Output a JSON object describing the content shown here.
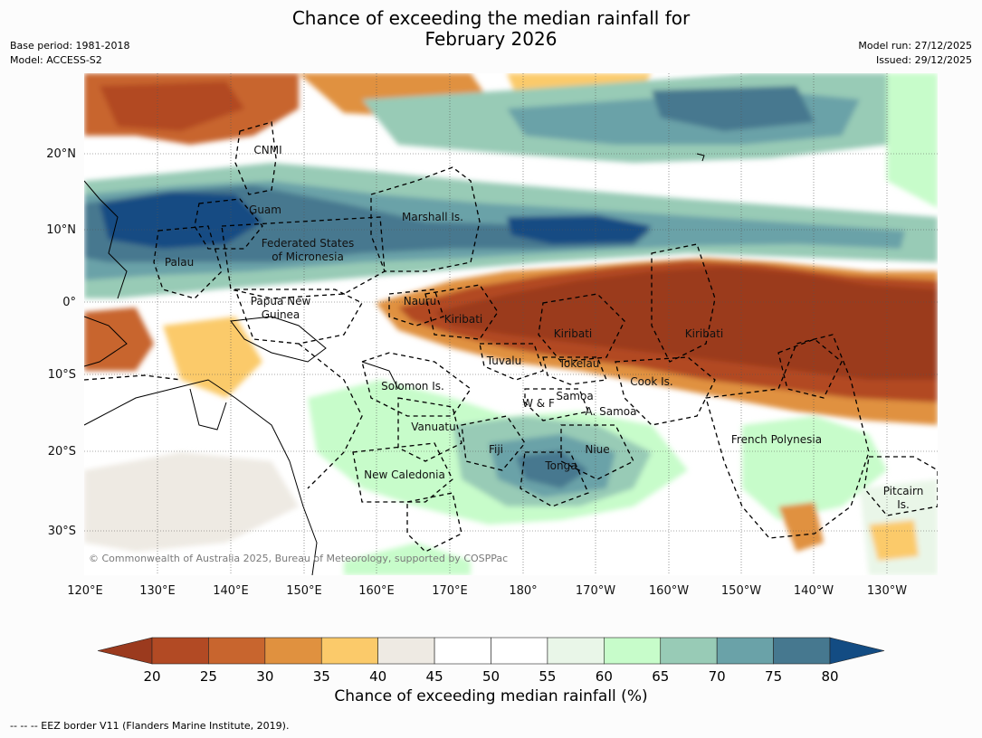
{
  "title": {
    "line1": "Chance of exceeding the median rainfall for",
    "line2": "February 2026"
  },
  "meta_left": {
    "base_period": "Base period: 1981-2018",
    "model": "Model: ACCESS-S2"
  },
  "meta_right": {
    "model_run": "Model run: 27/12/2025",
    "issued": "Issued: 29/12/2025"
  },
  "map": {
    "lon_ticks": [
      "120°E",
      "130°E",
      "140°E",
      "150°E",
      "160°E",
      "170°E",
      "180°",
      "170°W",
      "160°W",
      "150°W",
      "140°W",
      "130°W"
    ],
    "lat_ticks": [
      "20°N",
      "10°N",
      "0°",
      "10°S",
      "20°S",
      "30°S"
    ],
    "copyright": "© Commonwealth of Australia 2025, Bureau of Meteorology, supported by COSPPac",
    "regions": [
      "CNMI",
      "Guam",
      "Marshall Is.",
      "Federated States",
      "of Micronesia",
      "Palau",
      "Papua New",
      "Guinea",
      "Nauru",
      "Kiribati",
      "Kiribati",
      "Kiribati",
      "Tuvalu",
      "Tokelau",
      "Cook Is.",
      "Solomon Is.",
      "Samoa",
      "W & F",
      "A. Samoa",
      "Vanuatu",
      "Fiji",
      "Niue",
      "French Polynesia",
      "Tonga",
      "New Caledonia",
      "Pitcairn",
      "Is."
    ]
  },
  "colorbar": {
    "ticks": [
      "20",
      "25",
      "30",
      "35",
      "40",
      "45",
      "50",
      "55",
      "60",
      "65",
      "70",
      "75",
      "80"
    ],
    "colors": [
      "#9b3a1e",
      "#b24a24",
      "#c8652e",
      "#e0913f",
      "#fbca6a",
      "#eeeae3",
      "#ffffff",
      "#ffffff",
      "#e9f6e8",
      "#c7fcca",
      "#98cbb6",
      "#6aa2a8",
      "#46788f",
      "#134c83"
    ],
    "title": "Chance of exceeding median rainfall (%)"
  },
  "footnote": "--  --  -- EEZ border V11 (Flanders Marine Institute, 2019)."
}
